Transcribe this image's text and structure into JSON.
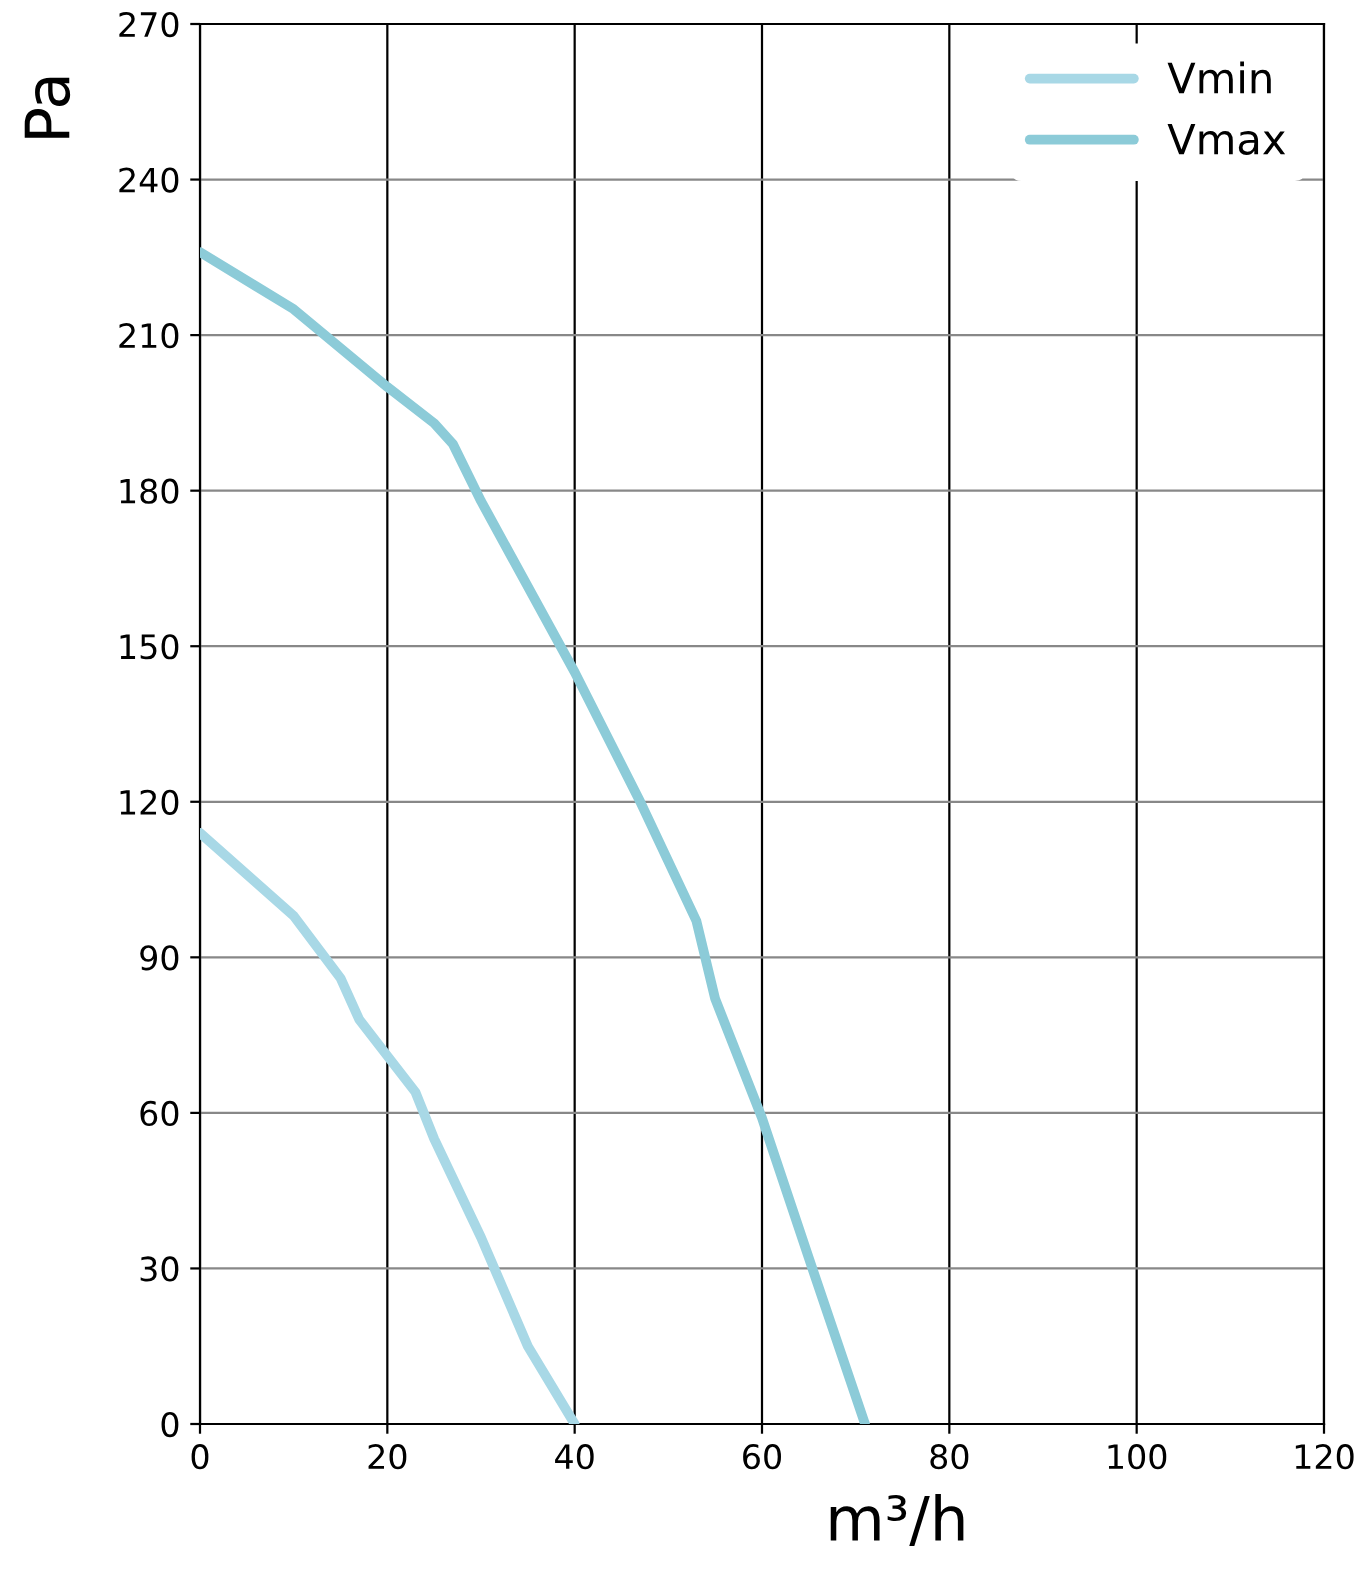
{
  "chart_data": {
    "type": "line",
    "xlabel": "m³/h",
    "ylabel": "Pa",
    "xlim": [
      0,
      120
    ],
    "xticks": [
      0,
      20,
      40,
      60,
      80,
      100,
      120
    ],
    "ylim": [
      0,
      270
    ],
    "yticks": [
      0,
      30,
      60,
      90,
      120,
      150,
      180,
      210,
      240,
      270
    ],
    "grid": true,
    "legend": "top right",
    "marker": "none",
    "line_style": "solid",
    "series": [
      {
        "name": "Vmin",
        "color": "#a8d8e6",
        "x": [
          0,
          10,
          15,
          17,
          20,
          23,
          25,
          30,
          35,
          40
        ],
        "values": [
          114,
          98,
          86,
          78,
          71,
          64,
          55,
          36,
          15,
          0
        ]
      },
      {
        "name": "Vmax",
        "color": "#8ccbd8",
        "x": [
          0,
          10,
          20,
          25,
          27,
          30,
          40,
          47,
          53,
          55,
          60,
          65,
          71
        ],
        "values": [
          226,
          215,
          200,
          193,
          189,
          178,
          145,
          120,
          97,
          82,
          59,
          32,
          0
        ]
      }
    ]
  }
}
